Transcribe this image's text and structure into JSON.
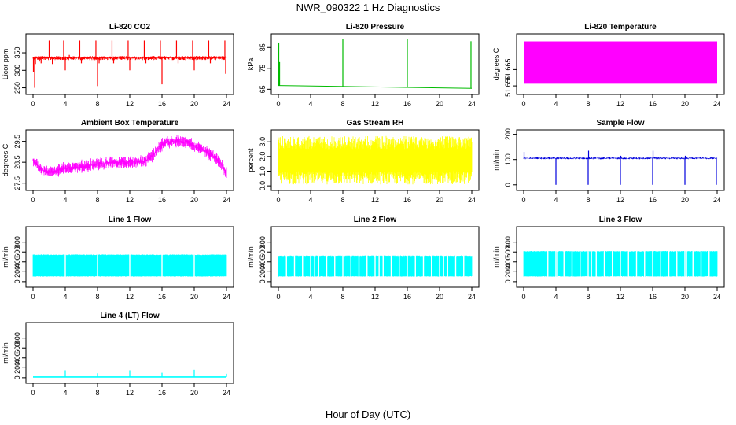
{
  "figure": {
    "title": "NWR_090322  1 Hz Diagnostics",
    "xlabel": "Hour of Day (UTC)"
  },
  "chart_data": [
    {
      "type": "line",
      "title": "Li-820 CO2",
      "ylabel": "Licor ppm",
      "color": "#ff0000",
      "xlim": [
        0,
        24
      ],
      "ylim": [
        240,
        395
      ],
      "yticks": [
        250,
        300,
        350
      ],
      "x_ticks": [
        0,
        4,
        8,
        12,
        16,
        20,
        24
      ],
      "baseline": 335,
      "band": 6,
      "spikes": [
        {
          "x": 0.05,
          "y": 295
        },
        {
          "x": 0.2,
          "y": 250
        },
        {
          "x": 0.3,
          "y": 318
        },
        {
          "x": 0.8,
          "y": 325
        },
        {
          "x": 1.0,
          "y": 320
        },
        {
          "x": 1.5,
          "y": 338
        },
        {
          "x": 2.0,
          "y": 385
        },
        {
          "x": 2.2,
          "y": 330
        },
        {
          "x": 2.4,
          "y": 318
        },
        {
          "x": 3.8,
          "y": 385
        },
        {
          "x": 4.0,
          "y": 300
        },
        {
          "x": 4.5,
          "y": 344
        },
        {
          "x": 5.8,
          "y": 385
        },
        {
          "x": 6.0,
          "y": 320
        },
        {
          "x": 7.8,
          "y": 385
        },
        {
          "x": 8.0,
          "y": 255
        },
        {
          "x": 8.2,
          "y": 320
        },
        {
          "x": 9.8,
          "y": 385
        },
        {
          "x": 10.0,
          "y": 320
        },
        {
          "x": 11.8,
          "y": 385
        },
        {
          "x": 12.0,
          "y": 300
        },
        {
          "x": 13.8,
          "y": 385
        },
        {
          "x": 14.0,
          "y": 320
        },
        {
          "x": 15.8,
          "y": 385
        },
        {
          "x": 16.0,
          "y": 260
        },
        {
          "x": 17.8,
          "y": 385
        },
        {
          "x": 18.0,
          "y": 320
        },
        {
          "x": 19.8,
          "y": 385
        },
        {
          "x": 20.0,
          "y": 300
        },
        {
          "x": 21.8,
          "y": 385
        },
        {
          "x": 22.0,
          "y": 320
        },
        {
          "x": 23.8,
          "y": 385
        },
        {
          "x": 23.9,
          "y": 290
        }
      ]
    },
    {
      "type": "line",
      "title": "Li-820 Pressure",
      "ylabel": "kPa",
      "color": "#00bb00",
      "xlim": [
        0,
        24
      ],
      "ylim": [
        64,
        90
      ],
      "yticks": [
        65,
        75,
        85
      ],
      "x_ticks": [
        0,
        4,
        8,
        12,
        16,
        20,
        24
      ],
      "trend": [
        {
          "x": 0,
          "y": 66.8
        },
        {
          "x": 24,
          "y": 65.4
        }
      ],
      "spikes": [
        {
          "x": 0.05,
          "y": 87
        },
        {
          "x": 0.15,
          "y": 78
        },
        {
          "x": 8.0,
          "y": 89
        },
        {
          "x": 16.0,
          "y": 89
        },
        {
          "x": 23.9,
          "y": 88
        }
      ]
    },
    {
      "type": "area",
      "title": "Li-820 Temperature",
      "ylabel": "degrees C",
      "color": "#ff00ff",
      "xlim": [
        0,
        24
      ],
      "ylim": [
        51.645,
        51.695
      ],
      "yticks": [
        51.65,
        51.665
      ],
      "ytick_labels": [
        "51.650",
        "51.665"
      ],
      "x_ticks": [
        0,
        4,
        8,
        12,
        16,
        20,
        24
      ],
      "fill_range": [
        51.652,
        51.691
      ]
    },
    {
      "type": "line",
      "title": "Ambient Box Temperature",
      "ylabel": "degrees C",
      "color": "#ff00ff",
      "xlim": [
        0,
        24
      ],
      "ylim": [
        27.3,
        29.9
      ],
      "yticks": [
        27.5,
        28.5,
        29.5
      ],
      "x_ticks": [
        0,
        4,
        8,
        12,
        16,
        20,
        24
      ],
      "center": [
        {
          "x": 0,
          "y": 28.6
        },
        {
          "x": 1,
          "y": 28.15
        },
        {
          "x": 2,
          "y": 28.05
        },
        {
          "x": 3,
          "y": 28.1
        },
        {
          "x": 4,
          "y": 28.2
        },
        {
          "x": 6,
          "y": 28.3
        },
        {
          "x": 8,
          "y": 28.4
        },
        {
          "x": 10,
          "y": 28.5
        },
        {
          "x": 12,
          "y": 28.5
        },
        {
          "x": 14,
          "y": 28.55
        },
        {
          "x": 15,
          "y": 28.9
        },
        {
          "x": 16,
          "y": 29.35
        },
        {
          "x": 17,
          "y": 29.5
        },
        {
          "x": 18,
          "y": 29.5
        },
        {
          "x": 19,
          "y": 29.45
        },
        {
          "x": 20,
          "y": 29.3
        },
        {
          "x": 21,
          "y": 29.1
        },
        {
          "x": 22,
          "y": 28.9
        },
        {
          "x": 23,
          "y": 28.6
        },
        {
          "x": 24,
          "y": 28.0
        }
      ],
      "amplitude": 0.35
    },
    {
      "type": "line",
      "title": "Gas Stream RH",
      "ylabel": "percent",
      "color": "#ffff00",
      "xlim": [
        0,
        24
      ],
      "ylim": [
        -0.1,
        3.6
      ],
      "yticks": [
        0.0,
        1.0,
        2.0,
        3.0
      ],
      "ytick_labels": [
        "0.0",
        "1.0",
        "2.0",
        "3.0"
      ],
      "x_ticks": [
        0,
        4,
        8,
        12,
        16,
        20,
        24
      ],
      "range": [
        0.1,
        3.4
      ]
    },
    {
      "type": "line",
      "title": "Sample Flow",
      "ylabel": "ml/min",
      "color": "#0000dd",
      "xlim": [
        0,
        24
      ],
      "ylim": [
        -10,
        205
      ],
      "yticks": [
        0,
        100,
        200
      ],
      "x_ticks": [
        0,
        4,
        8,
        12,
        16,
        20,
        24
      ],
      "baseline": 105,
      "band": 4,
      "spikes": [
        {
          "x": 0.05,
          "y": 130
        },
        {
          "x": 4.0,
          "y": 0
        },
        {
          "x": 8.0,
          "y": 0
        },
        {
          "x": 8.05,
          "y": 135
        },
        {
          "x": 12.0,
          "y": 0
        },
        {
          "x": 12.05,
          "y": 115
        },
        {
          "x": 16.0,
          "y": 0
        },
        {
          "x": 16.05,
          "y": 135
        },
        {
          "x": 20.0,
          "y": 0
        },
        {
          "x": 20.05,
          "y": 115
        },
        {
          "x": 23.9,
          "y": 0
        }
      ]
    },
    {
      "type": "line",
      "title": "Line 1 Flow",
      "ylabel": "ml/min",
      "color": "#00ffff",
      "xlim": [
        0,
        24
      ],
      "ylim": [
        -50,
        1050
      ],
      "yticks": [
        0,
        200,
        400,
        600,
        800
      ],
      "x_ticks": [
        0,
        4,
        8,
        12,
        16,
        20,
        24
      ],
      "band": [
        100,
        550
      ],
      "gaps": [
        4,
        8,
        12,
        16,
        20
      ]
    },
    {
      "type": "line",
      "title": "Line 2 Flow",
      "ylabel": "ml/min",
      "color": "#00ffff",
      "xlim": [
        0,
        24
      ],
      "ylim": [
        -50,
        1050
      ],
      "yticks": [
        0,
        200,
        400,
        600,
        800
      ],
      "x_ticks": [
        0,
        4,
        8,
        12,
        16,
        20,
        24
      ],
      "band": [
        100,
        530
      ],
      "gaps": [
        1,
        2,
        3,
        4,
        4.5,
        5,
        6,
        7,
        8,
        9,
        10,
        11,
        12,
        12.5,
        13,
        14,
        15,
        16,
        17,
        18,
        19,
        20,
        20.5,
        21,
        22,
        23
      ]
    },
    {
      "type": "line",
      "title": "Line 3 Flow",
      "ylabel": "ml/min",
      "color": "#00ffff",
      "xlim": [
        0,
        24
      ],
      "ylim": [
        -50,
        1050
      ],
      "yticks": [
        0,
        200,
        400,
        600,
        800
      ],
      "x_ticks": [
        0,
        4,
        8,
        12,
        16,
        20,
        24
      ],
      "band": [
        100,
        620
      ],
      "gaps": [
        3,
        4,
        4.2,
        5,
        6,
        7,
        8,
        8.4,
        9,
        10,
        11,
        12,
        13,
        14,
        15,
        16,
        17,
        18,
        19,
        20,
        20.2,
        21,
        22,
        23
      ]
    },
    {
      "type": "line",
      "title": "Line 4 (LT) Flow",
      "ylabel": "ml/min",
      "color": "#00ffff",
      "xlim": [
        0,
        24
      ],
      "ylim": [
        -50,
        1050
      ],
      "yticks": [
        0,
        200,
        400,
        600,
        800
      ],
      "x_ticks": [
        0,
        4,
        8,
        12,
        16,
        20,
        24
      ],
      "baseline": 15,
      "spikes": [
        {
          "x": 4.0,
          "y": 150
        },
        {
          "x": 8.0,
          "y": 90
        },
        {
          "x": 12.0,
          "y": 150
        },
        {
          "x": 16.0,
          "y": 100
        },
        {
          "x": 20.0,
          "y": 160
        },
        {
          "x": 24.0,
          "y": 80
        }
      ]
    }
  ]
}
